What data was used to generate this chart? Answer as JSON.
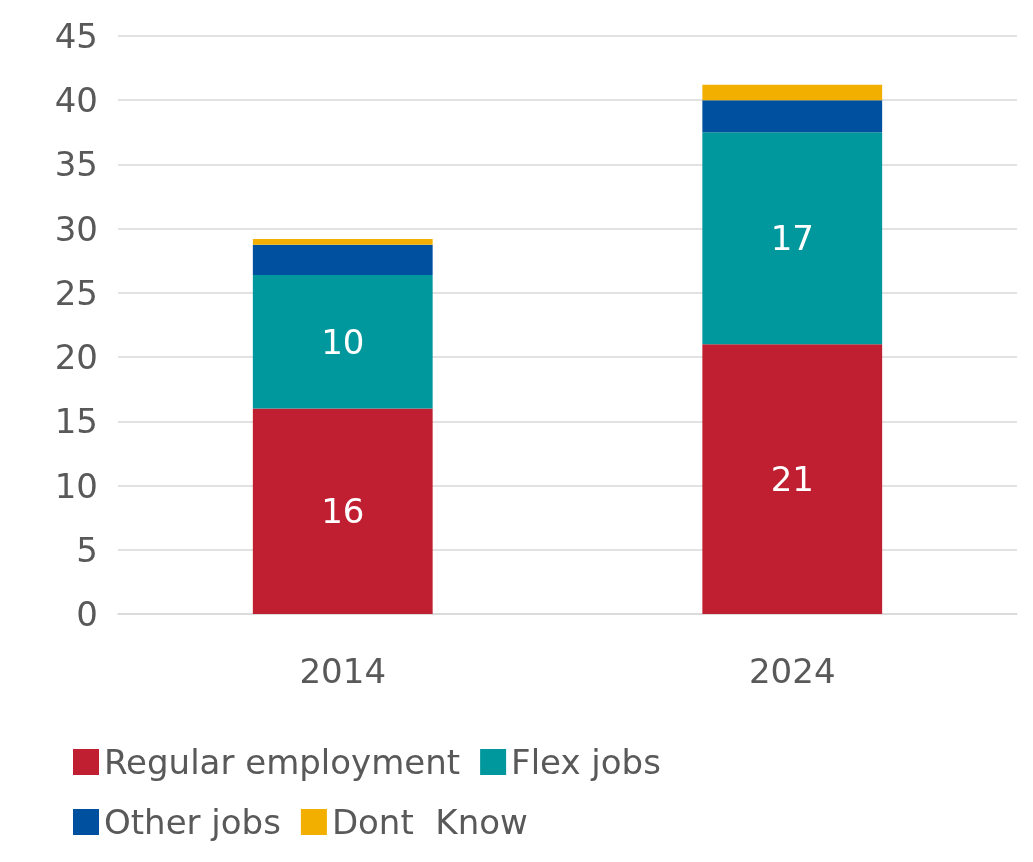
{
  "chart_data": {
    "type": "bar",
    "stacked": true,
    "categories": [
      "2014",
      "2024"
    ],
    "series": [
      {
        "name": "Regular employment",
        "color": "#c01f31",
        "values": [
          16,
          21
        ],
        "value_labels": [
          "16",
          "21"
        ]
      },
      {
        "name": "Flex jobs",
        "color": "#00979d",
        "values": [
          10.4,
          16.5
        ],
        "value_labels": [
          "10",
          "17"
        ]
      },
      {
        "name": "Other jobs",
        "color": "#0050a0",
        "values": [
          2.35,
          2.5
        ]
      },
      {
        "name": "Dont  Know",
        "color": "#f2af00",
        "values": [
          0.45,
          1.2
        ]
      }
    ],
    "ylim": [
      0,
      45
    ],
    "yticks": [
      0,
      5,
      10,
      15,
      20,
      25,
      30,
      35,
      40,
      45
    ],
    "grid": "y",
    "legend": "bottom"
  }
}
